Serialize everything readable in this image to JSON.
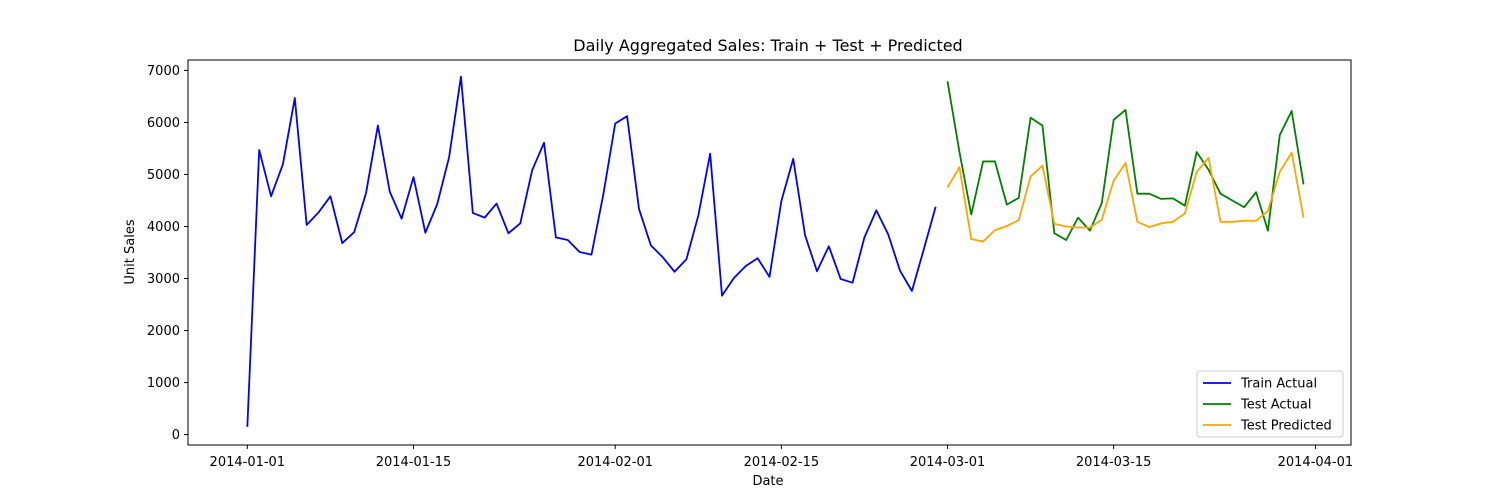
{
  "chart_data": {
    "type": "line",
    "title": "Daily Aggregated Sales: Train + Test + Predicted",
    "xlabel": "Date",
    "ylabel": "Unit Sales",
    "xlim": [
      "2013-12-27",
      "2014-04-04"
    ],
    "ylim": [
      -200,
      7200
    ],
    "x_ticks": [
      "2014-01-01",
      "2014-01-15",
      "2014-02-01",
      "2014-02-15",
      "2014-03-01",
      "2014-03-15",
      "2014-04-01"
    ],
    "y_ticks": [
      0,
      1000,
      2000,
      3000,
      4000,
      5000,
      6000,
      7000
    ],
    "grid": false,
    "legend_position": "lower-right",
    "series": [
      {
        "name": "Train Actual",
        "color": "#0000ff",
        "start_date": "2014-01-01",
        "values": [
          150,
          5470,
          4580,
          5200,
          6470,
          4030,
          4270,
          4580,
          3680,
          3890,
          4640,
          5940,
          4670,
          4150,
          4950,
          3880,
          4430,
          5330,
          6880,
          4260,
          4170,
          4440,
          3870,
          4060,
          5080,
          5610,
          3790,
          3740,
          3510,
          3460,
          4620,
          5980,
          6120,
          4340,
          3640,
          3410,
          3130,
          3370,
          4210,
          5400,
          2670,
          3010,
          3240,
          3390,
          3030,
          4490,
          5300,
          3830,
          3140,
          3620,
          2990,
          2920,
          3790,
          4310,
          3850,
          3150,
          2760,
          3560,
          4380
        ]
      },
      {
        "name": "Test Actual",
        "color": "#008000",
        "start_date": "2014-03-01",
        "values": [
          6790,
          5440,
          4230,
          5250,
          5250,
          4420,
          4550,
          6090,
          5940,
          3870,
          3740,
          4170,
          3920,
          4450,
          6050,
          6240,
          4630,
          4630,
          4530,
          4540,
          4400,
          5430,
          5090,
          4630,
          4500,
          4370,
          4660,
          3920,
          5760,
          6220,
          4810
        ]
      },
      {
        "name": "Test Predicted",
        "color": "#ffa500",
        "start_date": "2014-03-01",
        "values": [
          4750,
          5140,
          3760,
          3710,
          3930,
          4010,
          4120,
          4960,
          5170,
          4050,
          4000,
          3980,
          3980,
          4130,
          4880,
          5220,
          4090,
          3990,
          4060,
          4090,
          4250,
          5050,
          5320,
          4090,
          4090,
          4110,
          4110,
          4300,
          5050,
          5420,
          4170
        ]
      }
    ]
  }
}
